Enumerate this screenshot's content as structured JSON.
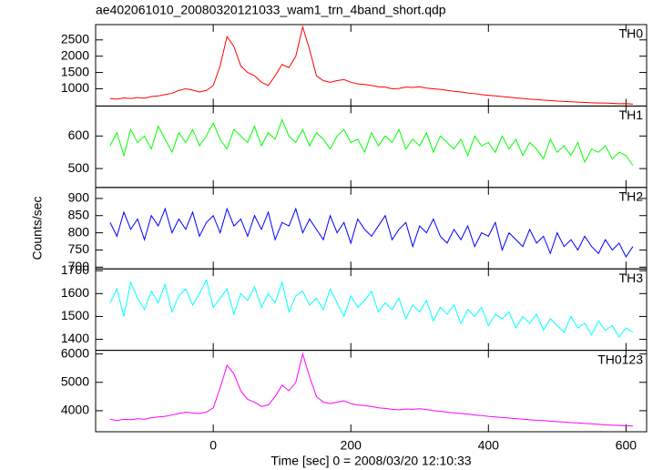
{
  "chart_data": [
    {
      "type": "line",
      "title": "ae402061010_20080320121033_wam1_trn_4band_short.qdp",
      "x": [
        -150,
        -140,
        -130,
        -120,
        -110,
        -100,
        -90,
        -80,
        -70,
        -60,
        -50,
        -40,
        -30,
        -20,
        -10,
        0,
        10,
        20,
        30,
        40,
        50,
        60,
        70,
        80,
        90,
        100,
        110,
        120,
        130,
        140,
        150,
        160,
        170,
        180,
        190,
        200,
        210,
        220,
        230,
        240,
        250,
        260,
        270,
        280,
        290,
        300,
        310,
        320,
        330,
        340,
        350,
        360,
        370,
        380,
        390,
        400,
        410,
        420,
        430,
        440,
        450,
        460,
        470,
        480,
        490,
        500,
        510,
        520,
        530,
        540,
        550,
        560,
        570,
        580,
        590,
        600,
        610
      ],
      "series": [
        {
          "name": "TH0",
          "color": "#ff0000",
          "values": [
            700,
            680,
            720,
            700,
            730,
            710,
            760,
            780,
            820,
            860,
            950,
            1000,
            960,
            900,
            950,
            1100,
            1700,
            2600,
            2300,
            1700,
            1500,
            1400,
            1200,
            1100,
            1400,
            1750,
            1650,
            2000,
            2900,
            2200,
            1400,
            1250,
            1200,
            1250,
            1280,
            1200,
            1150,
            1130,
            1100,
            1060,
            1050,
            1000,
            1010,
            1050,
            1040,
            1060,
            1020,
            1000,
            980,
            950,
            920,
            900,
            870,
            850,
            820,
            800,
            780,
            760,
            740,
            720,
            700,
            680,
            670,
            650,
            640,
            620,
            610,
            600,
            590,
            580,
            570,
            560,
            560,
            550,
            540,
            545,
            530
          ]
        }
      ],
      "xlim": [
        -171,
        630
      ],
      "ylim": [
        470,
        2970
      ],
      "yticks": [
        1000,
        1500,
        2000,
        2500
      ]
    },
    {
      "type": "line",
      "x": [
        -150,
        -140,
        -130,
        -120,
        -110,
        -100,
        -90,
        -80,
        -70,
        -60,
        -50,
        -40,
        -30,
        -20,
        -10,
        0,
        10,
        20,
        30,
        40,
        50,
        60,
        70,
        80,
        90,
        100,
        110,
        120,
        130,
        140,
        150,
        160,
        170,
        180,
        190,
        200,
        210,
        220,
        230,
        240,
        250,
        260,
        270,
        280,
        290,
        300,
        310,
        320,
        330,
        340,
        350,
        360,
        370,
        380,
        390,
        400,
        410,
        420,
        430,
        440,
        450,
        460,
        470,
        480,
        490,
        500,
        510,
        520,
        530,
        540,
        550,
        560,
        570,
        580,
        590,
        600,
        610
      ],
      "series": [
        {
          "name": "TH1",
          "color": "#00ff00",
          "values": [
            570,
            610,
            540,
            620,
            580,
            600,
            560,
            630,
            590,
            550,
            610,
            580,
            620,
            570,
            600,
            640,
            590,
            560,
            620,
            600,
            580,
            630,
            570,
            610,
            590,
            650,
            600,
            580,
            620,
            570,
            610,
            590,
            560,
            600,
            620,
            580,
            590,
            550,
            610,
            570,
            600,
            580,
            620,
            560,
            590,
            570,
            610,
            550,
            600,
            580,
            560,
            590,
            540,
            600,
            570,
            580,
            550,
            600,
            560,
            590,
            540,
            580,
            560,
            530,
            590,
            550,
            570,
            540,
            580,
            520,
            560,
            550,
            570,
            530,
            550,
            540,
            510
          ]
        }
      ],
      "xlim": [
        -171,
        630
      ],
      "ylim": [
        442,
        692
      ],
      "yticks": [
        500,
        600
      ]
    },
    {
      "type": "line",
      "y_label": "Counts/sec",
      "x": [
        -150,
        -140,
        -130,
        -120,
        -110,
        -100,
        -90,
        -80,
        -70,
        -60,
        -50,
        -40,
        -30,
        -20,
        -10,
        0,
        10,
        20,
        30,
        40,
        50,
        60,
        70,
        80,
        90,
        100,
        110,
        120,
        130,
        140,
        150,
        160,
        170,
        180,
        190,
        200,
        210,
        220,
        230,
        240,
        250,
        260,
        270,
        280,
        290,
        300,
        310,
        320,
        330,
        340,
        350,
        360,
        370,
        380,
        390,
        400,
        410,
        420,
        430,
        440,
        450,
        460,
        470,
        480,
        490,
        500,
        510,
        520,
        530,
        540,
        550,
        560,
        570,
        580,
        590,
        600,
        610
      ],
      "series": [
        {
          "name": "TH2",
          "color": "#0000ff",
          "values": [
            830,
            790,
            860,
            810,
            840,
            780,
            850,
            820,
            870,
            800,
            840,
            810,
            860,
            790,
            830,
            850,
            800,
            870,
            820,
            840,
            790,
            850,
            810,
            860,
            780,
            830,
            820,
            870,
            800,
            840,
            810,
            780,
            850,
            800,
            830,
            770,
            840,
            810,
            790,
            820,
            850,
            780,
            810,
            830,
            760,
            820,
            800,
            840,
            790,
            770,
            810,
            780,
            820,
            760,
            800,
            790,
            830,
            750,
            800,
            780,
            760,
            810,
            770,
            790,
            740,
            800,
            760,
            780,
            750,
            790,
            760,
            740,
            780,
            750,
            770,
            730,
            760
          ]
        }
      ],
      "xlim": [
        -171,
        630
      ],
      "ylim": [
        695,
        932
      ],
      "yticks": [
        700,
        750,
        800,
        850,
        900
      ]
    },
    {
      "type": "line",
      "x": [
        -150,
        -140,
        -130,
        -120,
        -110,
        -100,
        -90,
        -80,
        -70,
        -60,
        -50,
        -40,
        -30,
        -20,
        -10,
        0,
        10,
        20,
        30,
        40,
        50,
        60,
        70,
        80,
        90,
        100,
        110,
        120,
        130,
        140,
        150,
        160,
        170,
        180,
        190,
        200,
        210,
        220,
        230,
        240,
        250,
        260,
        270,
        280,
        290,
        300,
        310,
        320,
        330,
        340,
        350,
        360,
        370,
        380,
        390,
        400,
        410,
        420,
        430,
        440,
        450,
        460,
        470,
        480,
        490,
        500,
        510,
        520,
        530,
        540,
        550,
        560,
        570,
        580,
        590,
        600,
        610
      ],
      "series": [
        {
          "name": "TH3",
          "color": "#00ffff",
          "values": [
            1560,
            1620,
            1500,
            1650,
            1580,
            1530,
            1610,
            1560,
            1640,
            1520,
            1590,
            1620,
            1550,
            1600,
            1660,
            1540,
            1580,
            1620,
            1510,
            1600,
            1570,
            1630,
            1540,
            1600,
            1560,
            1650,
            1520,
            1590,
            1610,
            1550,
            1580,
            1530,
            1620,
            1560,
            1500,
            1590,
            1540,
            1570,
            1610,
            1520,
            1560,
            1530,
            1580,
            1490,
            1550,
            1520,
            1570,
            1480,
            1540,
            1510,
            1550,
            1470,
            1530,
            1500,
            1540,
            1460,
            1510,
            1490,
            1520,
            1450,
            1500,
            1470,
            1510,
            1440,
            1490,
            1460,
            1430,
            1500,
            1450,
            1470,
            1420,
            1480,
            1440,
            1460,
            1410,
            1450,
            1430
          ]
        }
      ],
      "xlim": [
        -171,
        630
      ],
      "ylim": [
        1352,
        1708
      ],
      "yticks": [
        1400,
        1500,
        1600,
        1700
      ]
    },
    {
      "type": "line",
      "x_label": "Time [sec] 0 = 2008/03/20 12:10:33",
      "x": [
        -150,
        -140,
        -130,
        -120,
        -110,
        -100,
        -90,
        -80,
        -70,
        -60,
        -50,
        -40,
        -30,
        -20,
        -10,
        0,
        10,
        20,
        30,
        40,
        50,
        60,
        70,
        80,
        90,
        100,
        110,
        120,
        130,
        140,
        150,
        160,
        170,
        180,
        190,
        200,
        210,
        220,
        230,
        240,
        250,
        260,
        270,
        280,
        290,
        300,
        310,
        320,
        330,
        340,
        350,
        360,
        370,
        380,
        390,
        400,
        410,
        420,
        430,
        440,
        450,
        460,
        470,
        480,
        490,
        500,
        510,
        520,
        530,
        540,
        550,
        560,
        570,
        580,
        590,
        600,
        610
      ],
      "series": [
        {
          "name": "TH0123",
          "color": "#ff00ff",
          "values": [
            3700,
            3650,
            3700,
            3680,
            3720,
            3700,
            3750,
            3780,
            3800,
            3850,
            3900,
            3950,
            3920,
            3900,
            3950,
            4100,
            4800,
            5600,
            5300,
            4700,
            4400,
            4300,
            4150,
            4200,
            4500,
            4900,
            4700,
            5000,
            6000,
            5200,
            4500,
            4300,
            4250,
            4300,
            4350,
            4250,
            4200,
            4180,
            4150,
            4100,
            4080,
            4050,
            4030,
            4060,
            4050,
            4070,
            4040,
            4000,
            3980,
            3950,
            3920,
            3900,
            3880,
            3850,
            3830,
            3800,
            3780,
            3760,
            3740,
            3720,
            3700,
            3680,
            3660,
            3650,
            3630,
            3610,
            3600,
            3580,
            3570,
            3550,
            3540,
            3520,
            3500,
            3490,
            3480,
            3470,
            3460
          ]
        }
      ],
      "xlim": [
        -171,
        630
      ],
      "ylim": [
        3258,
        6129
      ],
      "yticks": [
        4000,
        5000,
        6000
      ],
      "xticks": [
        0,
        200,
        400,
        600
      ]
    }
  ]
}
